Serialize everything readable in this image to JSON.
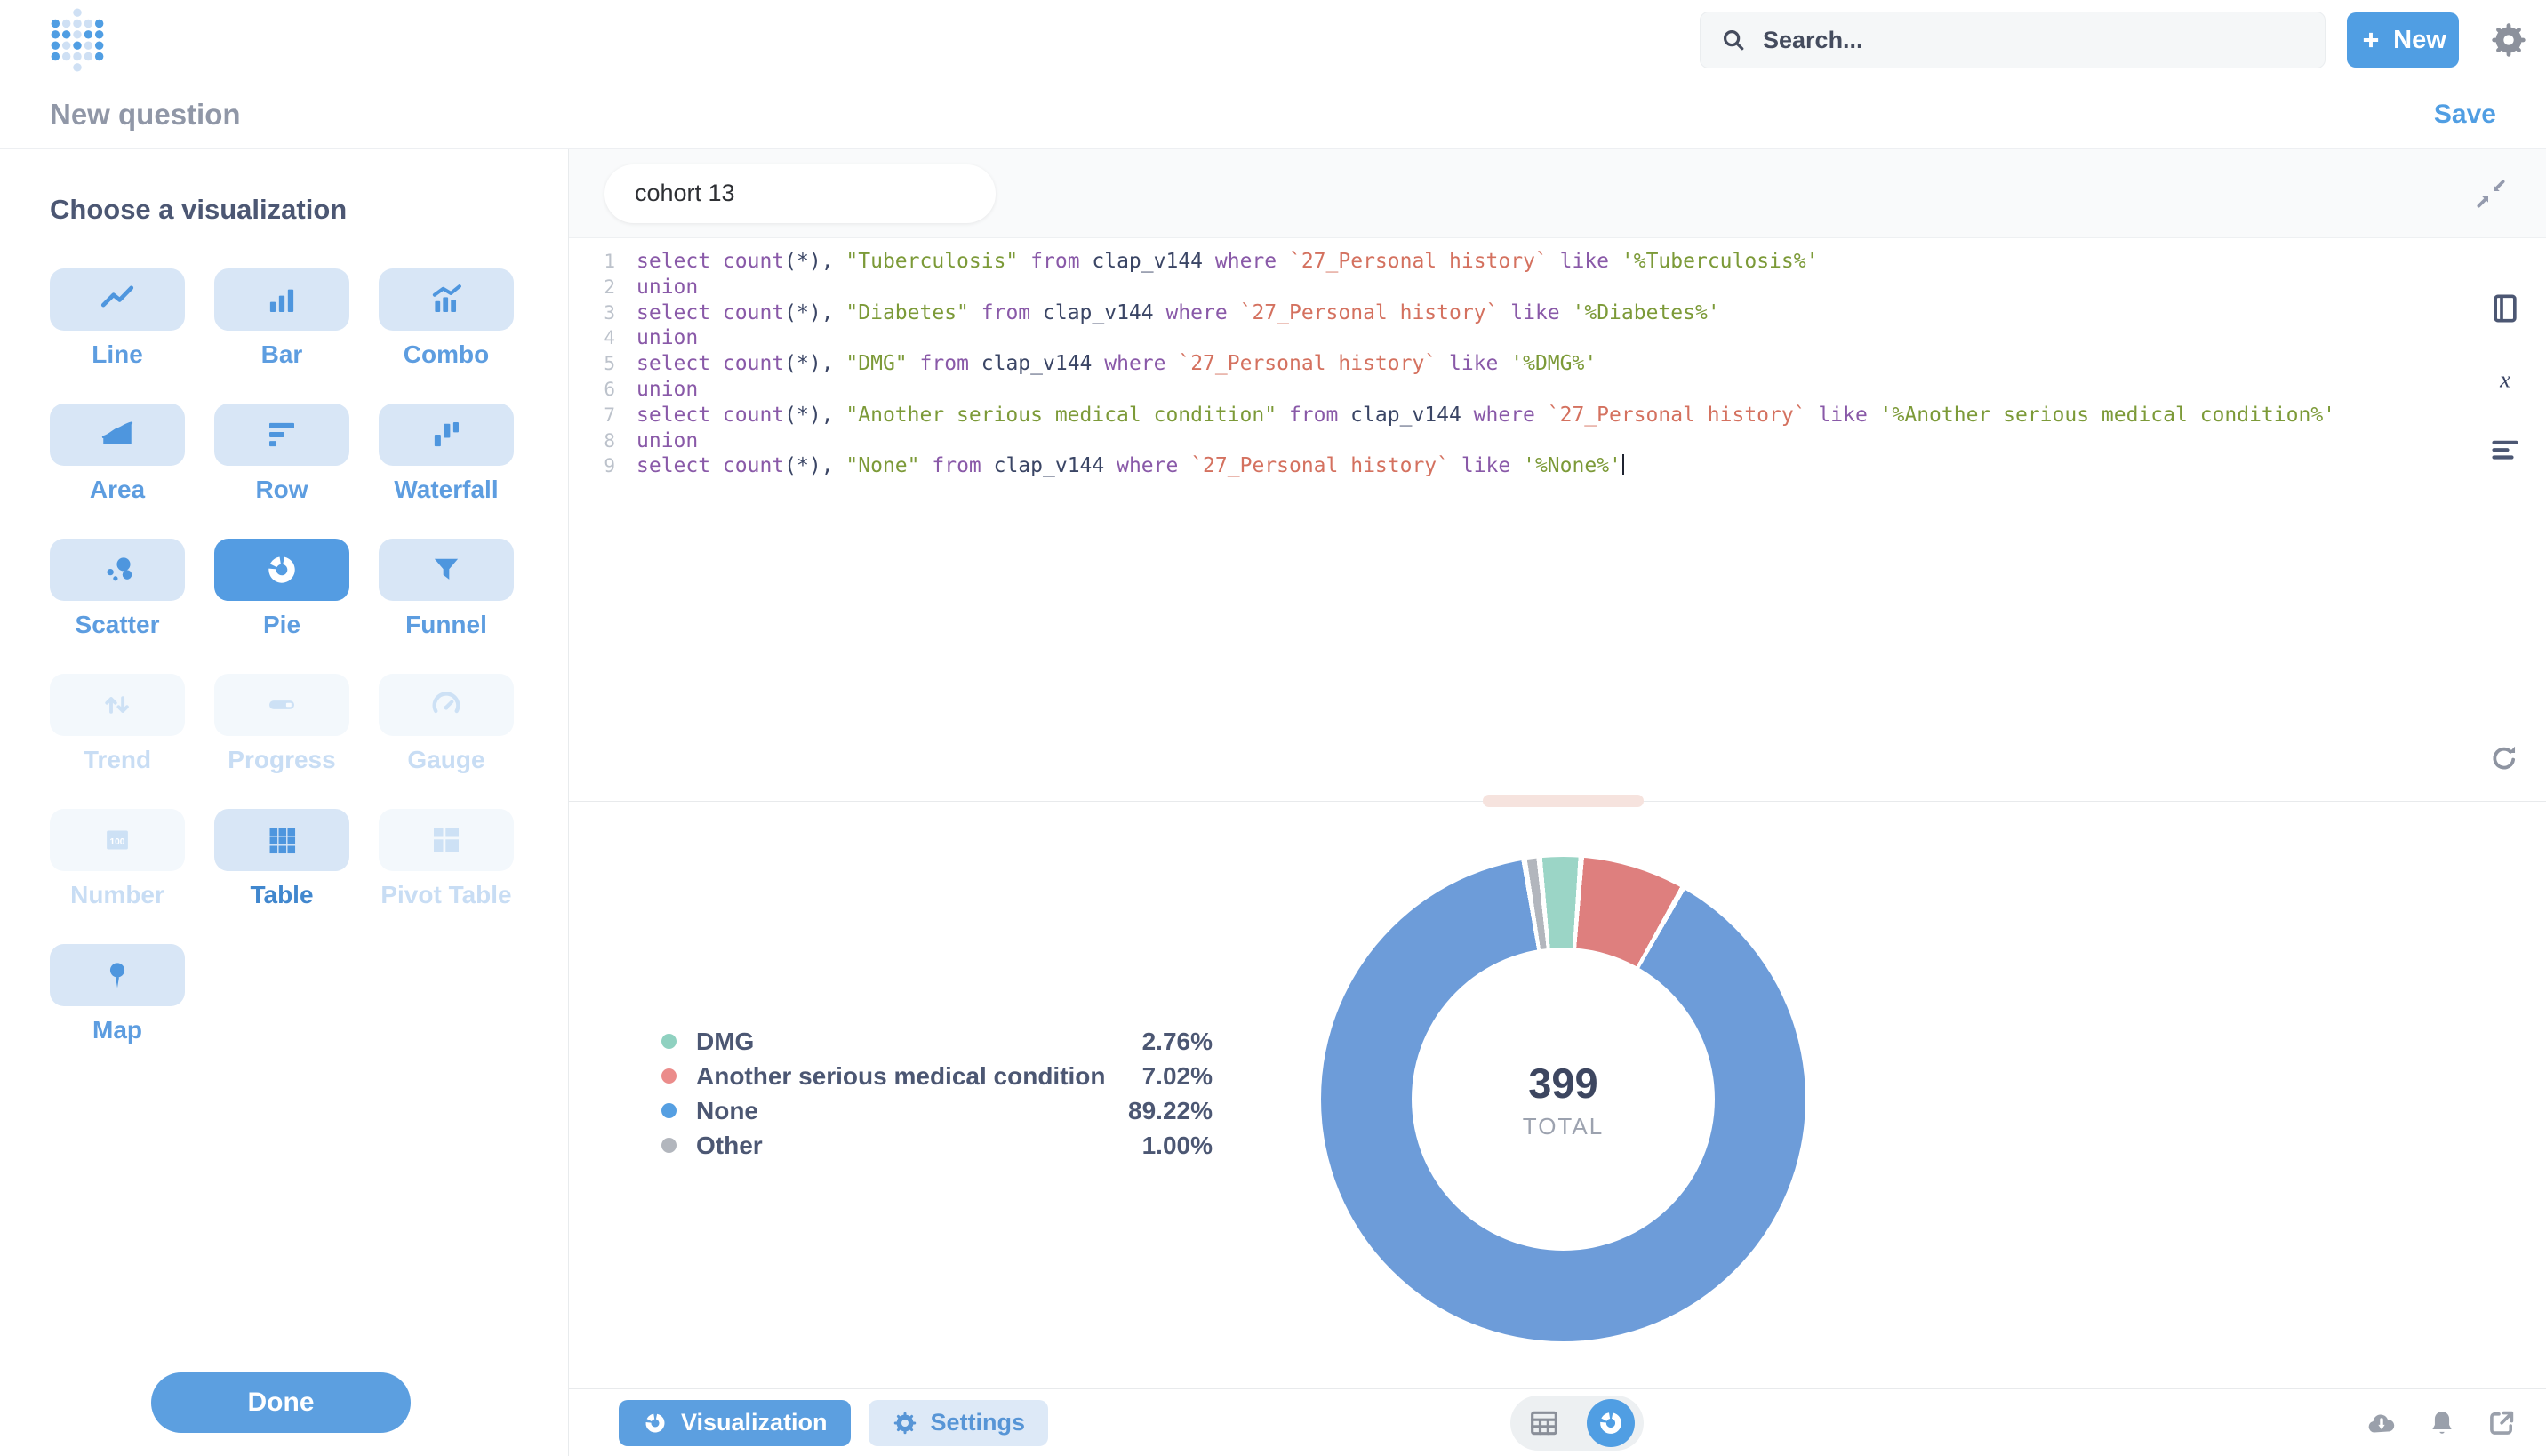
{
  "topbar": {
    "search_placeholder": "Search...",
    "new_label": "New"
  },
  "subheader": {
    "title": "New question",
    "save_label": "Save"
  },
  "sidebar": {
    "heading": "Choose a visualization",
    "done_label": "Done",
    "items": [
      {
        "id": "line",
        "label": "Line",
        "icon": "line-chart",
        "state": "normal"
      },
      {
        "id": "bar",
        "label": "Bar",
        "icon": "bar-chart",
        "state": "normal"
      },
      {
        "id": "combo",
        "label": "Combo",
        "icon": "combo-chart",
        "state": "normal"
      },
      {
        "id": "area",
        "label": "Area",
        "icon": "area-chart",
        "state": "normal"
      },
      {
        "id": "row",
        "label": "Row",
        "icon": "row-chart",
        "state": "normal"
      },
      {
        "id": "waterfall",
        "label": "Waterfall",
        "icon": "waterfall-chart",
        "state": "normal"
      },
      {
        "id": "scatter",
        "label": "Scatter",
        "icon": "scatter-chart",
        "state": "normal"
      },
      {
        "id": "pie",
        "label": "Pie",
        "icon": "pie-chart",
        "state": "selected"
      },
      {
        "id": "funnel",
        "label": "Funnel",
        "icon": "funnel-chart",
        "state": "normal"
      },
      {
        "id": "trend",
        "label": "Trend",
        "icon": "trend-chart",
        "state": "disabled"
      },
      {
        "id": "progress",
        "label": "Progress",
        "icon": "progress-bar",
        "state": "disabled"
      },
      {
        "id": "gauge",
        "label": "Gauge",
        "icon": "gauge-chart",
        "state": "disabled"
      },
      {
        "id": "number",
        "label": "Number",
        "icon": "number-tile",
        "state": "disabled"
      },
      {
        "id": "table",
        "label": "Table",
        "icon": "table-grid",
        "state": "normal",
        "strong": true
      },
      {
        "id": "pivot-table",
        "label": "Pivot Table",
        "icon": "pivot-grid",
        "state": "disabled"
      },
      {
        "id": "map",
        "label": "Map",
        "icon": "map-pin",
        "state": "normal"
      }
    ]
  },
  "editor": {
    "tag": "cohort 13",
    "lines": [
      {
        "n": 1,
        "tokens": [
          [
            "kw",
            "select count"
          ],
          [
            "pl",
            "(*), "
          ],
          [
            "str",
            "\"Tuberculosis\""
          ],
          [
            "pl",
            " "
          ],
          [
            "kw",
            "from"
          ],
          [
            "pl",
            " clap_v144 "
          ],
          [
            "kw",
            "where"
          ],
          [
            "pl",
            " "
          ],
          [
            "tick",
            "`27_Personal history`"
          ],
          [
            "pl",
            " "
          ],
          [
            "kw",
            "like"
          ],
          [
            "pl",
            " "
          ],
          [
            "str",
            "'%Tuberculosis%'"
          ]
        ]
      },
      {
        "n": 2,
        "tokens": [
          [
            "kw",
            "union"
          ]
        ]
      },
      {
        "n": 3,
        "tokens": [
          [
            "kw",
            "select count"
          ],
          [
            "pl",
            "(*), "
          ],
          [
            "str",
            "\"Diabetes\""
          ],
          [
            "pl",
            " "
          ],
          [
            "kw",
            "from"
          ],
          [
            "pl",
            " clap_v144 "
          ],
          [
            "kw",
            "where"
          ],
          [
            "pl",
            " "
          ],
          [
            "tick",
            "`27_Personal history`"
          ],
          [
            "pl",
            " "
          ],
          [
            "kw",
            "like"
          ],
          [
            "pl",
            " "
          ],
          [
            "str",
            "'%Diabetes%'"
          ]
        ]
      },
      {
        "n": 4,
        "tokens": [
          [
            "kw",
            "union"
          ]
        ]
      },
      {
        "n": 5,
        "tokens": [
          [
            "kw",
            "select count"
          ],
          [
            "pl",
            "(*), "
          ],
          [
            "str",
            "\"DMG\""
          ],
          [
            "pl",
            " "
          ],
          [
            "kw",
            "from"
          ],
          [
            "pl",
            " clap_v144 "
          ],
          [
            "kw",
            "where"
          ],
          [
            "pl",
            " "
          ],
          [
            "tick",
            "`27_Personal history`"
          ],
          [
            "pl",
            " "
          ],
          [
            "kw",
            "like"
          ],
          [
            "pl",
            " "
          ],
          [
            "str",
            "'%DMG%'"
          ]
        ]
      },
      {
        "n": 6,
        "tokens": [
          [
            "kw",
            "union"
          ]
        ]
      },
      {
        "n": 7,
        "tokens": [
          [
            "kw",
            "select count"
          ],
          [
            "pl",
            "(*), "
          ],
          [
            "str",
            "\"Another serious medical condition\""
          ],
          [
            "pl",
            " "
          ],
          [
            "kw",
            "from"
          ],
          [
            "pl",
            " clap_v144 "
          ],
          [
            "kw",
            "where"
          ],
          [
            "pl",
            " "
          ],
          [
            "tick",
            "`27_Personal history`"
          ],
          [
            "pl",
            " "
          ],
          [
            "kw",
            "like"
          ],
          [
            "pl",
            " "
          ],
          [
            "str",
            "'%Another serious medical condition%'"
          ]
        ]
      },
      {
        "n": 8,
        "tokens": [
          [
            "kw",
            "union"
          ]
        ]
      },
      {
        "n": 9,
        "tokens": [
          [
            "kw",
            "select count"
          ],
          [
            "pl",
            "(*), "
          ],
          [
            "str",
            "\"None\""
          ],
          [
            "pl",
            " "
          ],
          [
            "kw",
            "from"
          ],
          [
            "pl",
            " clap_v144 "
          ],
          [
            "kw",
            "where"
          ],
          [
            "pl",
            " "
          ],
          [
            "tick",
            "`27_Personal history`"
          ],
          [
            "pl",
            " "
          ],
          [
            "kw",
            "like"
          ],
          [
            "pl",
            " "
          ],
          [
            "str",
            "'%None%'"
          ]
        ],
        "cursor": true
      }
    ]
  },
  "chart_data": {
    "type": "pie",
    "style": "donut",
    "total": 399,
    "total_label": "TOTAL",
    "start_angle_deg": -8.6,
    "slices": [
      {
        "label": "Other",
        "value": 4,
        "percent": "1.00%",
        "color": "#B2B6BD"
      },
      {
        "label": "DMG",
        "value": 11,
        "percent": "2.76%",
        "color": "#9BD5C6"
      },
      {
        "label": "Another serious medical condition",
        "value": 28,
        "percent": "7.02%",
        "color": "#DE7F7E"
      },
      {
        "label": "None",
        "value": 356,
        "percent": "89.22%",
        "color": "#6D9CD9"
      }
    ],
    "legend": [
      {
        "label": "DMG",
        "value": "2.76%",
        "color": "#8FD1C0"
      },
      {
        "label": "Another serious medical condition",
        "value": "7.02%",
        "color": "#EB8C8B"
      },
      {
        "label": "None",
        "value": "89.22%",
        "color": "#559FE2"
      },
      {
        "label": "Other",
        "value": "1.00%",
        "color": "#B2B6BD"
      }
    ]
  },
  "bottombar": {
    "visualization_label": "Visualization",
    "settings_label": "Settings"
  }
}
